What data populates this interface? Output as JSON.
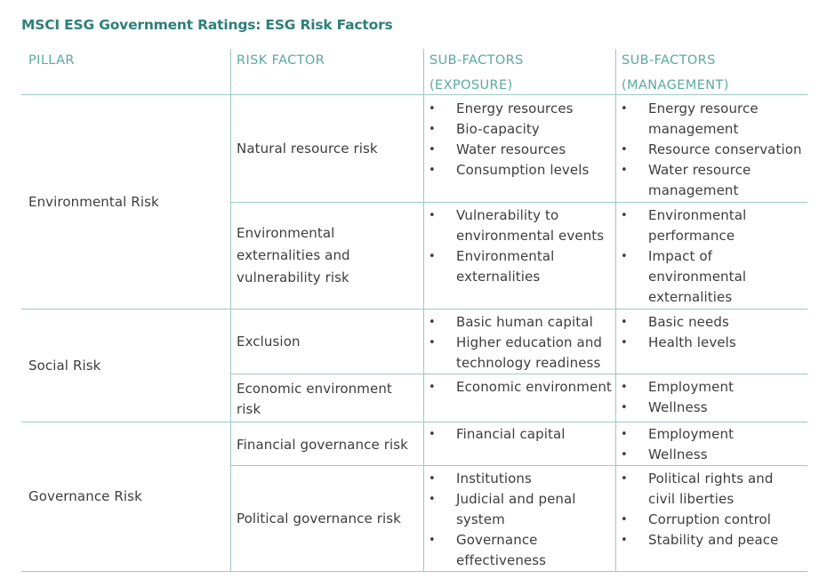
{
  "title": "MSCI ESG Government Ratings: ESG Risk Factors",
  "headers": {
    "pillar": "PILLAR",
    "risk_factor": "RISK FACTOR",
    "exposure_line1": "SUB-FACTORS",
    "exposure_line2": "(EXPOSURE)",
    "management_line1": "SUB-FACTORS",
    "management_line2": "(MANAGEMENT)"
  },
  "pillars": [
    {
      "name": "Environmental Risk",
      "factors": [
        {
          "name": "Natural resource risk",
          "exposure": [
            "Energy resources",
            "Bio-capacity",
            "Water resources",
            "Consumption levels"
          ],
          "management": [
            "Energy resource management",
            "Resource conservation",
            "Water resource management"
          ]
        },
        {
          "name": "Environmental externalities and vulnerability risk",
          "exposure": [
            "Vulnerability to environmental events",
            "Environmental externalities"
          ],
          "management": [
            "Environmental performance",
            "Impact of environmental externalities"
          ]
        }
      ]
    },
    {
      "name": "Social Risk",
      "factors": [
        {
          "name": "Exclusion",
          "exposure": [
            "Basic human capital",
            "Higher education and technology readiness"
          ],
          "management": [
            "Basic needs",
            "Health levels"
          ]
        },
        {
          "name": "Economic environment risk",
          "exposure": [
            "Economic environment"
          ],
          "management": [
            "Employment",
            "Wellness"
          ]
        }
      ]
    },
    {
      "name": "Governance Risk",
      "factors": [
        {
          "name": "Financial governance risk",
          "exposure": [
            "Financial capital"
          ],
          "management": [
            "Employment",
            "Wellness"
          ]
        },
        {
          "name": "Political governance risk",
          "exposure": [
            "Institutions",
            "Judicial and penal system",
            "Governance effectiveness"
          ],
          "management": [
            "Political rights and civil liberties",
            "Corruption control",
            "Stability and peace"
          ]
        }
      ]
    }
  ]
}
